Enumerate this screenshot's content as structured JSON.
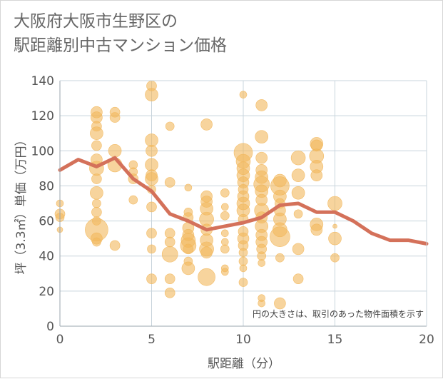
{
  "title": {
    "line1": "大阪府大阪市生野区の",
    "line2": "駅距離別中古マンション価格"
  },
  "colors": {
    "bubble": "#f2b75b",
    "line": "#d4715a",
    "grid": "#c8d4dc"
  },
  "chart_data": {
    "type": "scatter",
    "xlabel": "駅距離（分）",
    "ylabel": "坪（3.3㎡）単価（万円）",
    "xlim": [
      0,
      20
    ],
    "ylim": [
      0,
      140
    ],
    "x_ticks": [
      "0",
      "5",
      "10",
      "15",
      "20"
    ],
    "y_ticks": [
      "0",
      "20",
      "40",
      "60",
      "80",
      "100",
      "120",
      "140"
    ],
    "annotation": "円の大きさは、取引のあった物件面積を示す",
    "bubbles": [
      {
        "x": 0,
        "y": 70,
        "size": 5
      },
      {
        "x": 0,
        "y": 64,
        "size": 7
      },
      {
        "x": 0,
        "y": 62,
        "size": 6
      },
      {
        "x": 0,
        "y": 55,
        "size": 4
      },
      {
        "x": 2,
        "y": 122,
        "size": 8
      },
      {
        "x": 2,
        "y": 119,
        "size": 8
      },
      {
        "x": 2,
        "y": 114,
        "size": 7
      },
      {
        "x": 2,
        "y": 110,
        "size": 9
      },
      {
        "x": 2,
        "y": 103,
        "size": 7
      },
      {
        "x": 2,
        "y": 95,
        "size": 8
      },
      {
        "x": 2,
        "y": 90,
        "size": 10
      },
      {
        "x": 2,
        "y": 84,
        "size": 7
      },
      {
        "x": 2,
        "y": 76,
        "size": 9
      },
      {
        "x": 2,
        "y": 70,
        "size": 6
      },
      {
        "x": 2,
        "y": 65,
        "size": 7
      },
      {
        "x": 2,
        "y": 60,
        "size": 6
      },
      {
        "x": 2,
        "y": 55,
        "size": 16
      },
      {
        "x": 2,
        "y": 50,
        "size": 8
      },
      {
        "x": 2,
        "y": 48,
        "size": 6
      },
      {
        "x": 3,
        "y": 122,
        "size": 7
      },
      {
        "x": 3,
        "y": 119,
        "size": 7
      },
      {
        "x": 3,
        "y": 100,
        "size": 9
      },
      {
        "x": 3,
        "y": 92,
        "size": 10
      },
      {
        "x": 3,
        "y": 46,
        "size": 7
      },
      {
        "x": 4,
        "y": 92,
        "size": 6
      },
      {
        "x": 4,
        "y": 88,
        "size": 6
      },
      {
        "x": 4,
        "y": 84,
        "size": 7
      },
      {
        "x": 4,
        "y": 72,
        "size": 6
      },
      {
        "x": 5,
        "y": 137,
        "size": 7
      },
      {
        "x": 5,
        "y": 132,
        "size": 9
      },
      {
        "x": 5,
        "y": 106,
        "size": 9
      },
      {
        "x": 5,
        "y": 100,
        "size": 8
      },
      {
        "x": 5,
        "y": 92,
        "size": 9
      },
      {
        "x": 5,
        "y": 86,
        "size": 8
      },
      {
        "x": 5,
        "y": 84,
        "size": 9
      },
      {
        "x": 5,
        "y": 78,
        "size": 6
      },
      {
        "x": 5,
        "y": 68,
        "size": 7
      },
      {
        "x": 5,
        "y": 53,
        "size": 7
      },
      {
        "x": 5,
        "y": 44,
        "size": 6
      },
      {
        "x": 5,
        "y": 27,
        "size": 7
      },
      {
        "x": 6,
        "y": 114,
        "size": 6
      },
      {
        "x": 6,
        "y": 82,
        "size": 7
      },
      {
        "x": 6,
        "y": 53,
        "size": 7
      },
      {
        "x": 6,
        "y": 48,
        "size": 7
      },
      {
        "x": 6,
        "y": 41,
        "size": 11
      },
      {
        "x": 6,
        "y": 27,
        "size": 7
      },
      {
        "x": 6,
        "y": 19,
        "size": 7
      },
      {
        "x": 7,
        "y": 79,
        "size": 5
      },
      {
        "x": 7,
        "y": 65,
        "size": 6
      },
      {
        "x": 7,
        "y": 62,
        "size": 7
      },
      {
        "x": 7,
        "y": 56,
        "size": 8
      },
      {
        "x": 7,
        "y": 52,
        "size": 8
      },
      {
        "x": 7,
        "y": 49,
        "size": 10
      },
      {
        "x": 7,
        "y": 46,
        "size": 11
      },
      {
        "x": 7,
        "y": 44,
        "size": 7
      },
      {
        "x": 7,
        "y": 37,
        "size": 6
      },
      {
        "x": 7,
        "y": 33,
        "size": 9
      },
      {
        "x": 8,
        "y": 115,
        "size": 8
      },
      {
        "x": 8,
        "y": 74,
        "size": 8
      },
      {
        "x": 8,
        "y": 71,
        "size": 8
      },
      {
        "x": 8,
        "y": 67,
        "size": 9
      },
      {
        "x": 8,
        "y": 61,
        "size": 10
      },
      {
        "x": 8,
        "y": 55,
        "size": 8
      },
      {
        "x": 8,
        "y": 49,
        "size": 9
      },
      {
        "x": 8,
        "y": 44,
        "size": 10
      },
      {
        "x": 8,
        "y": 42,
        "size": 8
      },
      {
        "x": 8,
        "y": 28,
        "size": 12
      },
      {
        "x": 9,
        "y": 76,
        "size": 6
      },
      {
        "x": 9,
        "y": 68,
        "size": 5
      },
      {
        "x": 9,
        "y": 63,
        "size": 6
      },
      {
        "x": 9,
        "y": 53,
        "size": 5
      },
      {
        "x": 9,
        "y": 48,
        "size": 5
      },
      {
        "x": 9,
        "y": 44,
        "size": 6
      },
      {
        "x": 9,
        "y": 33,
        "size": 5
      },
      {
        "x": 9,
        "y": 31,
        "size": 5
      },
      {
        "x": 10,
        "y": 132,
        "size": 5
      },
      {
        "x": 10,
        "y": 99,
        "size": 13
      },
      {
        "x": 10,
        "y": 94,
        "size": 10
      },
      {
        "x": 10,
        "y": 90,
        "size": 9
      },
      {
        "x": 10,
        "y": 86,
        "size": 9
      },
      {
        "x": 10,
        "y": 82,
        "size": 8
      },
      {
        "x": 10,
        "y": 78,
        "size": 7
      },
      {
        "x": 10,
        "y": 74,
        "size": 8
      },
      {
        "x": 10,
        "y": 70,
        "size": 9
      },
      {
        "x": 10,
        "y": 66,
        "size": 9
      },
      {
        "x": 10,
        "y": 61,
        "size": 7
      },
      {
        "x": 10,
        "y": 54,
        "size": 7
      },
      {
        "x": 10,
        "y": 50,
        "size": 8
      },
      {
        "x": 10,
        "y": 46,
        "size": 7
      },
      {
        "x": 10,
        "y": 42,
        "size": 6
      },
      {
        "x": 10,
        "y": 37,
        "size": 6
      },
      {
        "x": 10,
        "y": 33,
        "size": 5
      },
      {
        "x": 10,
        "y": 25,
        "size": 6
      },
      {
        "x": 11,
        "y": 126,
        "size": 8
      },
      {
        "x": 11,
        "y": 108,
        "size": 9
      },
      {
        "x": 11,
        "y": 96,
        "size": 8
      },
      {
        "x": 11,
        "y": 89,
        "size": 8
      },
      {
        "x": 11,
        "y": 85,
        "size": 9
      },
      {
        "x": 11,
        "y": 81,
        "size": 11
      },
      {
        "x": 11,
        "y": 77,
        "size": 9
      },
      {
        "x": 11,
        "y": 72,
        "size": 8
      },
      {
        "x": 11,
        "y": 66,
        "size": 10
      },
      {
        "x": 11,
        "y": 62,
        "size": 8
      },
      {
        "x": 11,
        "y": 57,
        "size": 9
      },
      {
        "x": 11,
        "y": 52,
        "size": 8
      },
      {
        "x": 11,
        "y": 48,
        "size": 8
      },
      {
        "x": 11,
        "y": 44,
        "size": 7
      },
      {
        "x": 11,
        "y": 40,
        "size": 6
      },
      {
        "x": 11,
        "y": 36,
        "size": 5
      },
      {
        "x": 11,
        "y": 16,
        "size": 5
      },
      {
        "x": 11,
        "y": 13,
        "size": 5
      },
      {
        "x": 12,
        "y": 83,
        "size": 9
      },
      {
        "x": 12,
        "y": 80,
        "size": 13
      },
      {
        "x": 12,
        "y": 74,
        "size": 9
      },
      {
        "x": 12,
        "y": 70,
        "size": 7
      },
      {
        "x": 12,
        "y": 66,
        "size": 8
      },
      {
        "x": 12,
        "y": 61,
        "size": 9
      },
      {
        "x": 12,
        "y": 55,
        "size": 10
      },
      {
        "x": 12,
        "y": 51,
        "size": 14
      },
      {
        "x": 12,
        "y": 39,
        "size": 6
      },
      {
        "x": 12,
        "y": 13,
        "size": 8
      },
      {
        "x": 13,
        "y": 96,
        "size": 10
      },
      {
        "x": 13,
        "y": 86,
        "size": 9
      },
      {
        "x": 13,
        "y": 76,
        "size": 9
      },
      {
        "x": 13,
        "y": 64,
        "size": 6
      },
      {
        "x": 13,
        "y": 44,
        "size": 8
      },
      {
        "x": 13,
        "y": 27,
        "size": 7
      },
      {
        "x": 14,
        "y": 104,
        "size": 9
      },
      {
        "x": 14,
        "y": 103,
        "size": 8
      },
      {
        "x": 14,
        "y": 97,
        "size": 10
      },
      {
        "x": 14,
        "y": 91,
        "size": 9
      },
      {
        "x": 14,
        "y": 86,
        "size": 8
      },
      {
        "x": 14,
        "y": 58,
        "size": 9
      },
      {
        "x": 14,
        "y": 55,
        "size": 8
      },
      {
        "x": 15,
        "y": 70,
        "size": 10
      },
      {
        "x": 15,
        "y": 57,
        "size": 3
      },
      {
        "x": 15,
        "y": 50,
        "size": 9
      },
      {
        "x": 15,
        "y": 39,
        "size": 6
      }
    ],
    "series": [
      {
        "type": "line",
        "x": [
          0,
          1,
          2,
          3,
          4,
          5,
          6,
          7,
          8,
          9,
          10,
          11,
          12,
          13,
          14,
          15,
          16,
          17,
          18,
          19,
          20
        ],
        "y": [
          89,
          95,
          91,
          96,
          84,
          77,
          64,
          60,
          55,
          57,
          59,
          62,
          69,
          70,
          65,
          65,
          60,
          53,
          49,
          49,
          47
        ]
      }
    ]
  }
}
